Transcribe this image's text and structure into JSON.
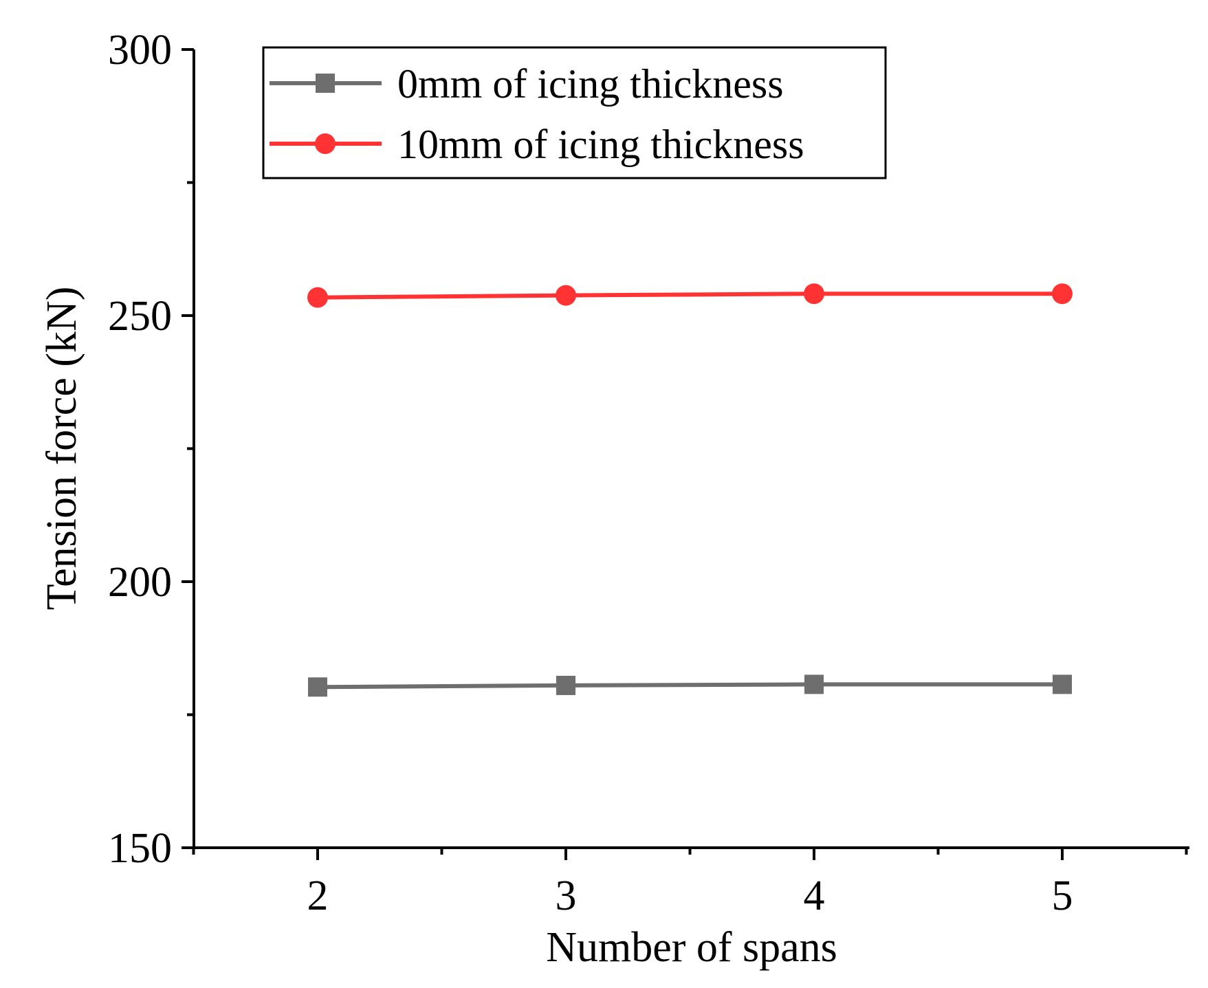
{
  "chart_data": {
    "type": "line",
    "title": "",
    "xlabel": "Number of spans",
    "ylabel": "Tension force (kN)",
    "x": [
      2,
      3,
      4,
      5
    ],
    "xlim": [
      1.5,
      5.5
    ],
    "ylim": [
      150,
      300
    ],
    "xticks": [
      2,
      3,
      4,
      5
    ],
    "xtick_labels": [
      "2",
      "3",
      "4",
      "5"
    ],
    "yticks": [
      150,
      200,
      250,
      300
    ],
    "ytick_labels": [
      "150",
      "200",
      "250",
      "300"
    ],
    "grid": false,
    "legend_position": "top-left",
    "series": [
      {
        "name": "0mm of icing thickness",
        "values": [
          180.2,
          180.5,
          180.7,
          180.7
        ],
        "color": "#6e6e6e",
        "marker": "square"
      },
      {
        "name": "10mm of icing thickness",
        "values": [
          253.4,
          253.8,
          254.1,
          254.1
        ],
        "color": "#ff3333",
        "marker": "circle"
      }
    ]
  }
}
